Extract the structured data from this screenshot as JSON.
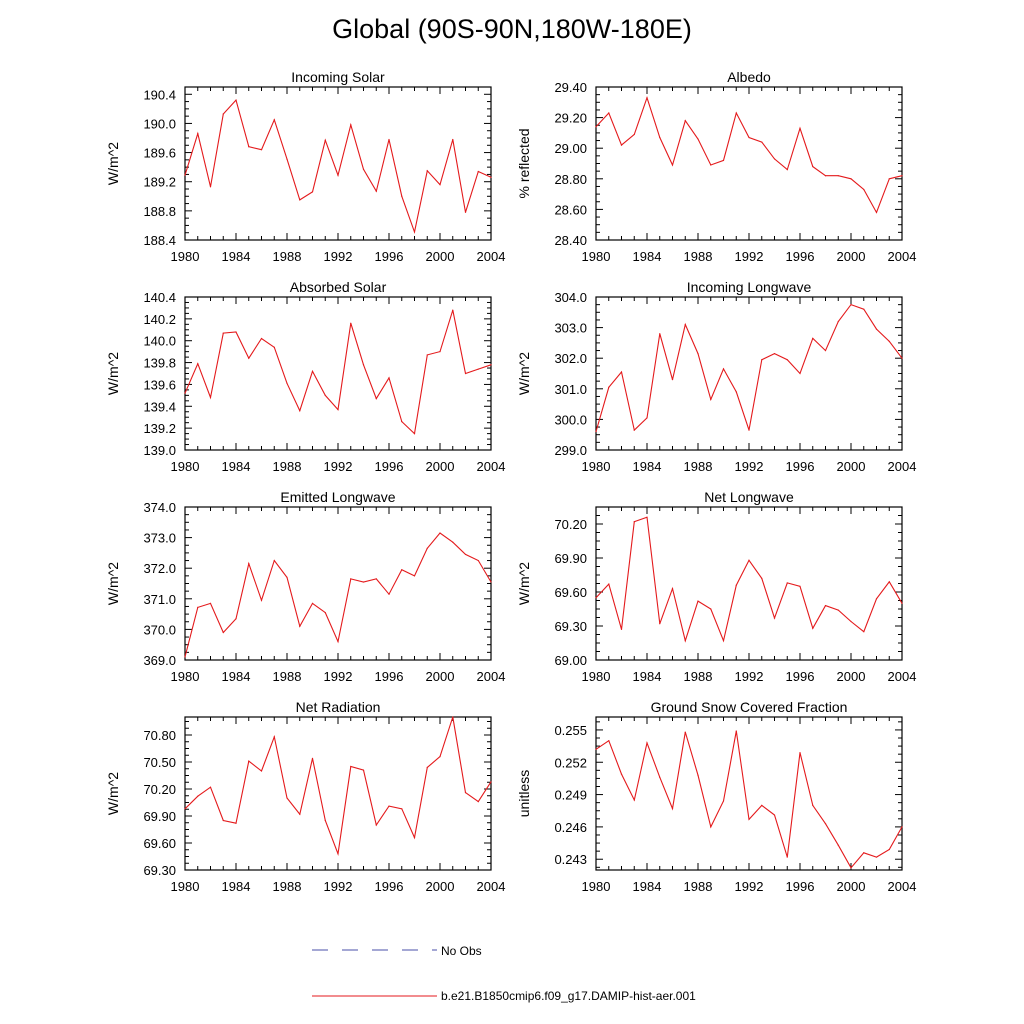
{
  "figure": {
    "title": "Global (90S-90N,180W-180E)",
    "legend": [
      {
        "label": "No Obs",
        "style": "dashed",
        "color": "#4a4fa8"
      },
      {
        "label": "b.e21.B1850cmip6.f09_g17.DAMIP-hist-aer.001",
        "style": "solid",
        "color": "#e41a1c"
      }
    ]
  },
  "chart_data": [
    {
      "type": "line",
      "title": "Incoming Solar",
      "xlabel": "",
      "ylabel": "W/m^2",
      "xlim": [
        1980,
        2004
      ],
      "ylim": [
        188.4,
        190.5
      ],
      "xticks": [
        "1980",
        "1984",
        "1988",
        "1992",
        "1996",
        "2000",
        "2004"
      ],
      "yticks": [
        "188.4",
        "188.8",
        "189.2",
        "189.6",
        "190.0",
        "190.4"
      ],
      "series": [
        {
          "color": "#e41a1c",
          "x": [
            1980,
            1981,
            1982,
            1983,
            1984,
            1985,
            1986,
            1987,
            1988,
            1989,
            1990,
            1991,
            1992,
            1993,
            1994,
            1995,
            1996,
            1997,
            1998,
            1999,
            2000,
            2001,
            2002,
            2003,
            2004
          ],
          "values": [
            189.29,
            189.86,
            189.13,
            190.13,
            190.32,
            189.68,
            189.64,
            190.05,
            189.51,
            188.95,
            189.06,
            189.77,
            189.29,
            189.98,
            189.37,
            189.07,
            189.78,
            189.0,
            188.51,
            189.35,
            189.16,
            189.78,
            188.78,
            189.34,
            189.26
          ]
        }
      ]
    },
    {
      "type": "line",
      "title": "Albedo",
      "xlabel": "",
      "ylabel": "% reflected",
      "xlim": [
        1980,
        2004
      ],
      "ylim": [
        28.4,
        29.4
      ],
      "xticks": [
        "1980",
        "1984",
        "1988",
        "1992",
        "1996",
        "2000",
        "2004"
      ],
      "yticks": [
        "28.40",
        "28.60",
        "28.80",
        "29.00",
        "29.20",
        "29.40"
      ],
      "series": [
        {
          "color": "#e41a1c",
          "x": [
            1980,
            1981,
            1982,
            1983,
            1984,
            1985,
            1986,
            1987,
            1988,
            1989,
            1990,
            1991,
            1992,
            1993,
            1994,
            1995,
            1996,
            1997,
            1998,
            1999,
            2000,
            2001,
            2002,
            2003,
            2004
          ],
          "values": [
            29.14,
            29.23,
            29.02,
            29.09,
            29.33,
            29.07,
            28.89,
            29.18,
            29.06,
            28.89,
            28.92,
            29.23,
            29.07,
            29.04,
            28.93,
            28.86,
            29.13,
            28.88,
            28.82,
            28.82,
            28.8,
            28.73,
            28.58,
            28.8,
            28.82
          ]
        }
      ]
    },
    {
      "type": "line",
      "title": "Absorbed Solar",
      "xlabel": "",
      "ylabel": "W/m^2",
      "xlim": [
        1980,
        2004
      ],
      "ylim": [
        139.0,
        140.4
      ],
      "xticks": [
        "1980",
        "1984",
        "1988",
        "1992",
        "1996",
        "2000",
        "2004"
      ],
      "yticks": [
        "139.0",
        "139.2",
        "139.4",
        "139.6",
        "139.8",
        "140.0",
        "140.2",
        "140.4"
      ],
      "series": [
        {
          "color": "#e41a1c",
          "x": [
            1980,
            1981,
            1982,
            1983,
            1984,
            1985,
            1986,
            1987,
            1988,
            1989,
            1990,
            1991,
            1992,
            1993,
            1994,
            1995,
            1996,
            1997,
            1998,
            1999,
            2000,
            2001,
            2002,
            2003,
            2004
          ],
          "values": [
            139.52,
            139.79,
            139.48,
            140.07,
            140.08,
            139.84,
            140.02,
            139.94,
            139.61,
            139.36,
            139.72,
            139.5,
            139.37,
            140.16,
            139.78,
            139.47,
            139.66,
            139.26,
            139.15,
            139.87,
            139.9,
            140.28,
            139.7,
            139.74,
            139.78
          ]
        }
      ]
    },
    {
      "type": "line",
      "title": "Incoming Longwave",
      "xlabel": "",
      "ylabel": "W/m^2",
      "xlim": [
        1980,
        2004
      ],
      "ylim": [
        299.0,
        304.0
      ],
      "xticks": [
        "1980",
        "1984",
        "1988",
        "1992",
        "1996",
        "2000",
        "2004"
      ],
      "yticks": [
        "299.0",
        "300.0",
        "301.0",
        "302.0",
        "303.0",
        "304.0"
      ],
      "series": [
        {
          "color": "#e41a1c",
          "x": [
            1980,
            1981,
            1982,
            1983,
            1984,
            1985,
            1986,
            1987,
            1988,
            1989,
            1990,
            1991,
            1992,
            1993,
            1994,
            1995,
            1996,
            1997,
            1998,
            1999,
            2000,
            2001,
            2002,
            2003,
            2004
          ],
          "values": [
            299.6,
            301.05,
            301.55,
            299.65,
            300.05,
            302.8,
            301.3,
            303.1,
            302.15,
            300.65,
            301.65,
            300.9,
            299.65,
            301.95,
            302.15,
            301.95,
            301.5,
            302.65,
            302.25,
            303.2,
            303.75,
            303.6,
            302.95,
            302.55,
            302.0
          ]
        }
      ]
    },
    {
      "type": "line",
      "title": "Emitted Longwave",
      "xlabel": "",
      "ylabel": "W/m^2",
      "xlim": [
        1980,
        2004
      ],
      "ylim": [
        369.0,
        374.0
      ],
      "xticks": [
        "1980",
        "1984",
        "1988",
        "1992",
        "1996",
        "2000",
        "2004"
      ],
      "yticks": [
        "369.0",
        "370.0",
        "371.0",
        "372.0",
        "373.0",
        "374.0"
      ],
      "series": [
        {
          "color": "#e41a1c",
          "x": [
            1980,
            1981,
            1982,
            1983,
            1984,
            1985,
            1986,
            1987,
            1988,
            1989,
            1990,
            1991,
            1992,
            1993,
            1994,
            1995,
            1996,
            1997,
            1998,
            1999,
            2000,
            2001,
            2002,
            2003,
            2004
          ],
          "values": [
            369.1,
            370.72,
            370.85,
            369.9,
            370.35,
            372.15,
            370.95,
            372.25,
            371.7,
            370.1,
            370.85,
            370.55,
            369.6,
            371.65,
            371.55,
            371.65,
            371.15,
            371.95,
            371.75,
            372.65,
            373.15,
            372.85,
            372.45,
            372.25,
            371.55
          ]
        }
      ]
    },
    {
      "type": "line",
      "title": "Net Longwave",
      "xlabel": "",
      "ylabel": "W/m^2",
      "xlim": [
        1980,
        2004
      ],
      "ylim": [
        69.0,
        70.35
      ],
      "xticks": [
        "1980",
        "1984",
        "1988",
        "1992",
        "1996",
        "2000",
        "2004"
      ],
      "yticks": [
        "69.00",
        "69.30",
        "69.60",
        "69.90",
        "70.20"
      ],
      "series": [
        {
          "color": "#e41a1c",
          "x": [
            1980,
            1981,
            1982,
            1983,
            1984,
            1985,
            1986,
            1987,
            1988,
            1989,
            1990,
            1991,
            1992,
            1993,
            1994,
            1995,
            1996,
            1997,
            1998,
            1999,
            2000,
            2001,
            2002,
            2003,
            2004
          ],
          "values": [
            69.55,
            69.67,
            69.27,
            70.22,
            70.26,
            69.32,
            69.63,
            69.17,
            69.52,
            69.45,
            69.17,
            69.66,
            69.88,
            69.72,
            69.37,
            69.68,
            69.65,
            69.28,
            69.48,
            69.44,
            69.34,
            69.25,
            69.54,
            69.69,
            69.5
          ]
        }
      ]
    },
    {
      "type": "line",
      "title": "Net Radiation",
      "xlabel": "",
      "ylabel": "W/m^2",
      "xlim": [
        1980,
        2004
      ],
      "ylim": [
        69.3,
        71.0
      ],
      "xticks": [
        "1980",
        "1984",
        "1988",
        "1992",
        "1996",
        "2000",
        "2004"
      ],
      "yticks": [
        "69.30",
        "69.60",
        "69.90",
        "70.20",
        "70.50",
        "70.80"
      ],
      "series": [
        {
          "color": "#e41a1c",
          "x": [
            1980,
            1981,
            1982,
            1983,
            1984,
            1985,
            1986,
            1987,
            1988,
            1989,
            1990,
            1991,
            1992,
            1993,
            1994,
            1995,
            1996,
            1997,
            1998,
            1999,
            2000,
            2001,
            2002,
            2003,
            2004
          ],
          "values": [
            69.98,
            70.12,
            70.22,
            69.85,
            69.82,
            70.51,
            70.4,
            70.78,
            70.1,
            69.92,
            70.54,
            69.85,
            69.48,
            70.45,
            70.41,
            69.8,
            70.01,
            69.98,
            69.66,
            70.44,
            70.56,
            71.0,
            70.16,
            70.06,
            70.28
          ]
        }
      ]
    },
    {
      "type": "line",
      "title": "Ground Snow Covered Fraction",
      "xlabel": "",
      "ylabel": "unitless",
      "xlim": [
        1980,
        2004
      ],
      "ylim": [
        0.242,
        0.2562
      ],
      "xticks": [
        "1980",
        "1984",
        "1988",
        "1992",
        "1996",
        "2000",
        "2004"
      ],
      "yticks": [
        "0.243",
        "0.246",
        "0.249",
        "0.252",
        "0.255"
      ],
      "series": [
        {
          "color": "#e41a1c",
          "x": [
            1980,
            1981,
            1982,
            1983,
            1984,
            1985,
            1986,
            1987,
            1988,
            1989,
            1990,
            1991,
            1992,
            1993,
            1994,
            1995,
            1996,
            1997,
            1998,
            1999,
            2000,
            2001,
            2002,
            2003,
            2004
          ],
          "values": [
            0.2532,
            0.254,
            0.2509,
            0.2485,
            0.2538,
            0.2506,
            0.2477,
            0.2548,
            0.2508,
            0.246,
            0.2484,
            0.2549,
            0.2467,
            0.248,
            0.2471,
            0.2432,
            0.2529,
            0.248,
            0.2463,
            0.2443,
            0.2422,
            0.2436,
            0.2432,
            0.2439,
            0.246
          ]
        }
      ]
    }
  ]
}
